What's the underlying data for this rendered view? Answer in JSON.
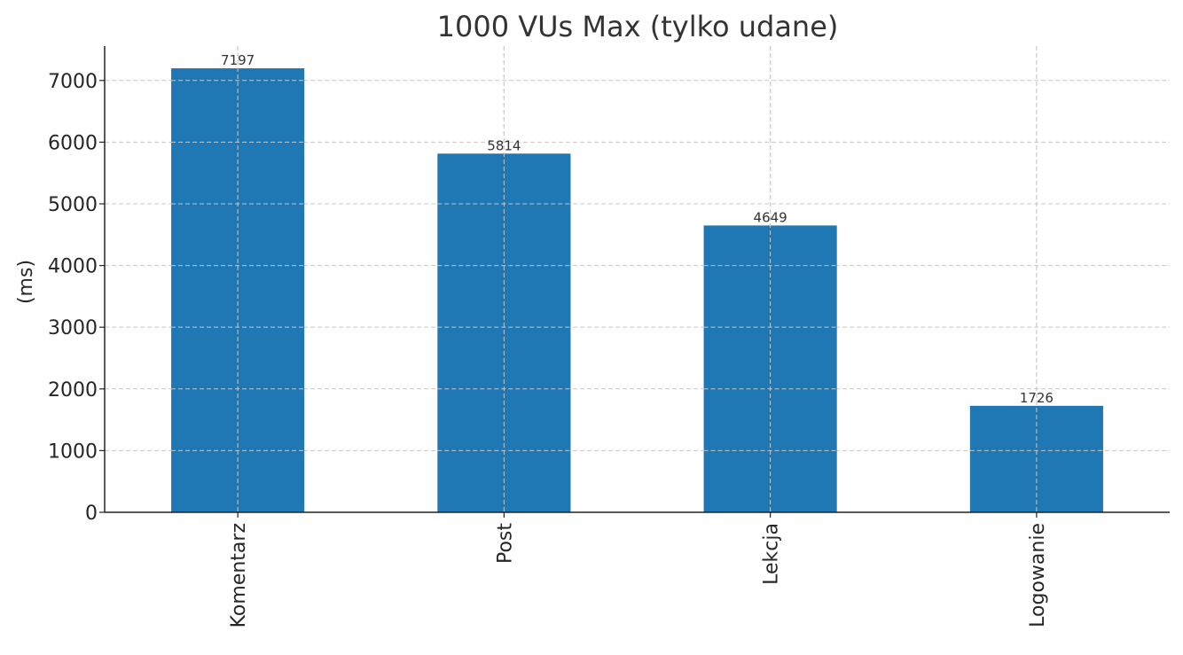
{
  "chart_data": {
    "type": "bar",
    "title": "1000 VUs Max (tylko udane)",
    "xlabel": "",
    "ylabel": "(ms)",
    "categories": [
      "Komentarz",
      "Post",
      "Lekcja",
      "Logowanie"
    ],
    "values": [
      7197,
      5814,
      4649,
      1726
    ],
    "value_labels": [
      "7197",
      "5814",
      "4649",
      "1726"
    ],
    "yticks": [
      0,
      1000,
      2000,
      3000,
      4000,
      5000,
      6000,
      7000
    ],
    "ytick_labels": [
      "0",
      "1000",
      "2000",
      "3000",
      "4000",
      "5000",
      "6000",
      "7000"
    ],
    "ylim": [
      0,
      7557
    ],
    "grid": true,
    "bar_color": "#1f77b4",
    "x_tick_rotation": "vertical",
    "legend": "none"
  }
}
